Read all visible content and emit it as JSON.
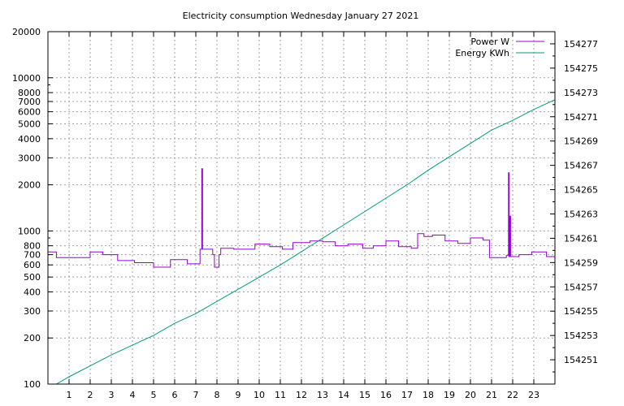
{
  "chart_data": {
    "type": "line",
    "title": "Electricity consumption Wednesday January 27 2021",
    "xlabel": "",
    "ylabel": "",
    "grid": true,
    "legend_placement": "top-right",
    "x_range": [
      0,
      24
    ],
    "x_ticks": [
      1,
      2,
      3,
      4,
      5,
      6,
      7,
      8,
      9,
      10,
      11,
      12,
      13,
      14,
      15,
      16,
      17,
      18,
      19,
      20,
      21,
      22,
      23
    ],
    "y_left": {
      "scale": "log",
      "range": [
        100,
        20000
      ],
      "ticks": [
        100,
        200,
        300,
        400,
        500,
        600,
        700,
        800,
        1000,
        2000,
        3000,
        4000,
        5000,
        6000,
        7000,
        8000,
        10000,
        20000
      ],
      "tick_labels": [
        "100",
        "200",
        "300",
        "400",
        "500",
        "600",
        "700",
        "800",
        "1000",
        "2000",
        "3000",
        "4000",
        "5000",
        "6000",
        "7000",
        "8000",
        "10000",
        "20000"
      ]
    },
    "y_right": {
      "scale": "linear",
      "range": [
        154249,
        154278
      ],
      "ticks": [
        154251,
        154253,
        154255,
        154257,
        154259,
        154261,
        154263,
        154265,
        154267,
        154269,
        154271,
        154273,
        154275,
        154277
      ],
      "tick_labels": [
        "154251",
        "154253",
        "154255",
        "154257",
        "154259",
        "154261",
        "154263",
        "154265",
        "154267",
        "154269",
        "154271",
        "154273",
        "154275",
        "154277"
      ]
    },
    "series": [
      {
        "name": "Power W",
        "axis": "left",
        "color": "#9400d3",
        "step": true,
        "points": [
          [
            0,
            730
          ],
          [
            0.4,
            670
          ],
          [
            2,
            730
          ],
          [
            2.6,
            700
          ],
          [
            3.3,
            640
          ],
          [
            4.1,
            620
          ],
          [
            5,
            580
          ],
          [
            5.8,
            650
          ],
          [
            6.6,
            610
          ],
          [
            7.2,
            760
          ],
          [
            7.28,
            2550
          ],
          [
            7.32,
            760
          ],
          [
            7.8,
            700
          ],
          [
            7.88,
            580
          ],
          [
            8.1,
            700
          ],
          [
            8.18,
            770
          ],
          [
            8.8,
            760
          ],
          [
            9.8,
            820
          ],
          [
            10.5,
            790
          ],
          [
            11.1,
            760
          ],
          [
            11.6,
            840
          ],
          [
            12.4,
            860
          ],
          [
            13,
            850
          ],
          [
            13.6,
            800
          ],
          [
            14.2,
            820
          ],
          [
            14.9,
            770
          ],
          [
            15.4,
            800
          ],
          [
            16,
            860
          ],
          [
            16.6,
            790
          ],
          [
            17.2,
            770
          ],
          [
            17.5,
            960
          ],
          [
            17.8,
            920
          ],
          [
            18.2,
            940
          ],
          [
            18.8,
            860
          ],
          [
            19.4,
            830
          ],
          [
            20,
            900
          ],
          [
            20.6,
            870
          ],
          [
            20.9,
            670
          ],
          [
            21.7,
            690
          ],
          [
            21.8,
            2400
          ],
          [
            21.83,
            680
          ],
          [
            21.86,
            1250
          ],
          [
            21.9,
            680
          ],
          [
            22.3,
            700
          ],
          [
            22.9,
            730
          ],
          [
            23.6,
            680
          ],
          [
            24,
            680
          ]
        ]
      },
      {
        "name": "Energy KWh",
        "axis": "right",
        "color": "#009e73",
        "step": false,
        "points": [
          [
            0.4,
            154249
          ],
          [
            1,
            154249.6
          ],
          [
            2,
            154250.5
          ],
          [
            3,
            154251.4
          ],
          [
            4,
            154252.2
          ],
          [
            5,
            154253.0
          ],
          [
            6,
            154254.0
          ],
          [
            7,
            154254.8
          ],
          [
            8,
            154255.8
          ],
          [
            9,
            154256.8
          ],
          [
            10,
            154257.8
          ],
          [
            11,
            154258.8
          ],
          [
            12,
            154259.9
          ],
          [
            13,
            154261.0
          ],
          [
            14,
            154262.1
          ],
          [
            15,
            154263.2
          ],
          [
            16,
            154264.3
          ],
          [
            17,
            154265.4
          ],
          [
            18,
            154266.6
          ],
          [
            19,
            154267.7
          ],
          [
            20,
            154268.8
          ],
          [
            21,
            154269.9
          ],
          [
            22,
            154270.7
          ],
          [
            23,
            154271.6
          ],
          [
            24,
            154272.4
          ]
        ]
      }
    ]
  }
}
